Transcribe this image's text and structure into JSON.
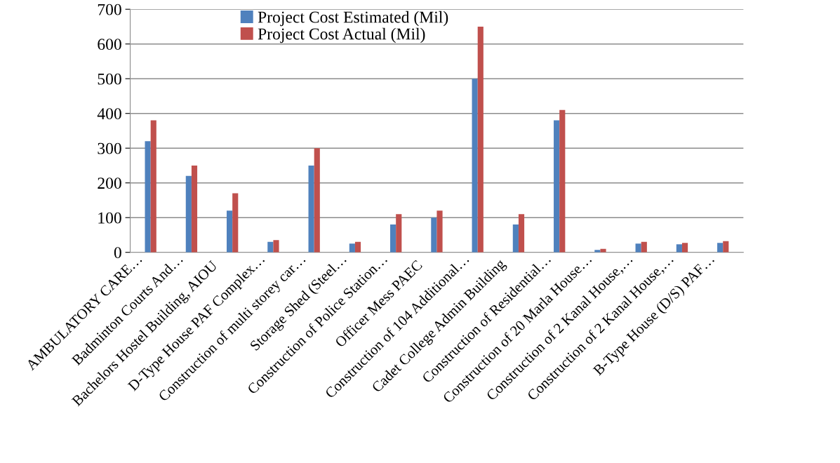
{
  "chart_data": {
    "type": "bar",
    "categories": [
      "AMBULATORY CARE…",
      "Badminton Courts And…",
      "Bachelors Hostel Building, AIOU",
      "D-Type House PAF Complex…",
      "Construction of multi storey car…",
      "Storage Shed (Steel…",
      "Construction of Police Station…",
      "Officer Mess PAEC",
      "Construction of 104 Additional…",
      "Cadet College Admin Building",
      "Construction of Residential…",
      "Construction of 20 Marla House…",
      "Construction of 2 Kanal House,…",
      "Construction of 2 Kanal House,…",
      "B-Type House (D/S) PAF…"
    ],
    "series": [
      {
        "name": "Project Cost Estimated (Mil)",
        "color": "#4f81bd",
        "values": [
          320,
          220,
          120,
          30,
          250,
          25,
          80,
          100,
          500,
          80,
          380,
          7,
          25,
          23,
          27
        ]
      },
      {
        "name": "Project Cost Actual (Mil)",
        "color": "#c0504d",
        "values": [
          380,
          250,
          170,
          35,
          300,
          30,
          110,
          120,
          650,
          110,
          410,
          10,
          30,
          27,
          32
        ]
      }
    ],
    "ylim": [
      0,
      700
    ],
    "yticks": [
      0,
      100,
      200,
      300,
      400,
      500,
      600,
      700
    ],
    "grid": "y",
    "legend": "top"
  }
}
